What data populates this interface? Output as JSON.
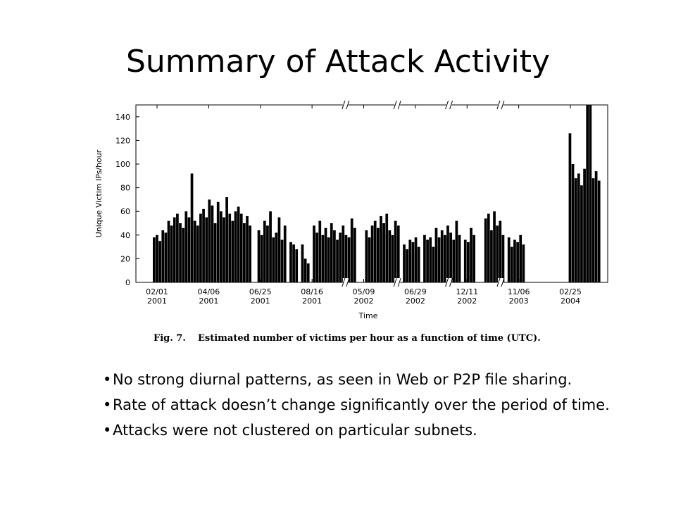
{
  "slide": {
    "title": "Summary of Attack Activity",
    "bullets": [
      "No strong diurnal patterns, as seen in Web or P2P file sharing.",
      "Rate of attack doesn’t change significantly over the period of time.",
      "Attacks were not clustered on particular subnets."
    ]
  },
  "figure": {
    "caption_label": "Fig. 7.",
    "caption_text": "Estimated number of victims per hour as a function of time (UTC)."
  },
  "chart_data": {
    "type": "bar",
    "title": "",
    "xlabel": "Time",
    "ylabel": "Unique Victim IPs/hour",
    "ylim": [
      0,
      150
    ],
    "yticks": [
      0,
      20,
      40,
      60,
      80,
      100,
      120,
      140
    ],
    "x_tick_labels": [
      {
        "line1": "02/01",
        "line2": "2001"
      },
      {
        "line1": "04/06",
        "line2": "2001"
      },
      {
        "line1": "06/25",
        "line2": "2001"
      },
      {
        "line1": "08/16",
        "line2": "2001"
      },
      {
        "line1": "05/09",
        "line2": "2002"
      },
      {
        "line1": "06/29",
        "line2": "2002"
      },
      {
        "line1": "12/11",
        "line2": "2002"
      },
      {
        "line1": "11/06",
        "line2": "2003"
      },
      {
        "line1": "02/25",
        "line2": "2004"
      }
    ],
    "axis_breaks": 4,
    "grid": false,
    "legend": "none",
    "bar_color": "#000000",
    "series": [
      {
        "values": [
          38,
          40,
          35,
          44,
          42,
          52,
          48,
          55,
          58,
          50,
          46,
          60,
          55,
          92,
          52,
          48,
          58,
          62,
          55,
          70,
          65,
          50,
          68,
          60,
          55,
          72,
          58,
          52,
          60,
          64,
          58,
          50,
          56,
          48,
          0,
          0,
          44,
          40,
          52,
          48,
          60,
          38,
          42,
          55,
          36,
          48,
          0,
          34,
          32,
          28,
          0,
          32,
          20,
          16,
          0,
          48,
          42,
          52,
          40,
          46,
          38,
          50,
          44,
          36,
          42,
          48,
          40,
          38,
          54,
          46,
          0,
          0,
          0,
          44,
          38,
          48,
          52,
          46,
          56,
          50,
          58,
          44,
          40,
          52,
          48,
          0,
          32,
          28,
          36,
          34,
          38,
          30,
          0,
          40,
          36,
          38,
          30,
          46,
          38,
          44,
          40,
          48,
          42,
          36,
          52,
          40,
          0,
          36,
          34,
          46,
          40,
          0,
          0,
          0,
          54,
          58,
          44,
          60,
          48,
          52,
          40,
          0,
          38,
          30,
          36,
          34,
          40,
          32,
          0,
          0,
          0,
          0,
          0,
          0,
          0,
          0,
          0,
          0,
          0,
          0,
          0,
          0,
          0,
          126,
          100,
          88,
          92,
          82,
          96,
          150,
          150,
          88,
          94,
          86
        ]
      }
    ]
  }
}
